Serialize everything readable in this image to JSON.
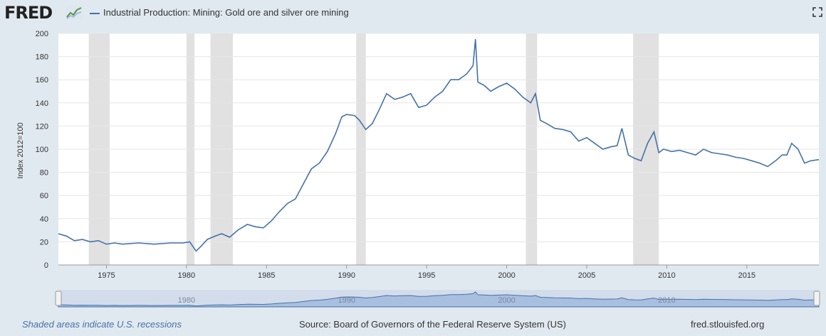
{
  "brand": {
    "name": "FRED"
  },
  "header": {
    "series_label": "Industrial Production: Mining: Gold ore and silver ore mining"
  },
  "icons": {
    "logo": "fred-chart-icon",
    "expand": "fullscreen-icon"
  },
  "colors": {
    "line": "#4572a7",
    "recession": "#e1e1e1",
    "background": "#e1e9f0",
    "grid": "#e6e6e6"
  },
  "footer": {
    "recession_note": "Shaded areas indicate U.S. recessions",
    "source": "Source: Board of Governors of the Federal Reserve System (US)",
    "site": "fred.stlouisfed.org"
  },
  "chart_data": {
    "type": "line",
    "title": "Industrial Production: Mining: Gold ore and silver ore mining",
    "ylabel": "Index 2012=100",
    "xlabel": "",
    "xlim": [
      1972.0,
      2019.5
    ],
    "ylim": [
      0,
      200
    ],
    "yticks": [
      0,
      20,
      40,
      60,
      80,
      100,
      120,
      140,
      160,
      180,
      200
    ],
    "xticks": [
      1975,
      1980,
      1985,
      1990,
      1995,
      2000,
      2005,
      2010,
      2015
    ],
    "recessions": [
      [
        1973.9,
        1975.2
      ],
      [
        1980.0,
        1980.5
      ],
      [
        1981.5,
        1982.9
      ],
      [
        1990.6,
        1991.2
      ],
      [
        2001.2,
        2001.9
      ],
      [
        2007.9,
        2009.5
      ]
    ],
    "navigator_ticks": [
      1980,
      1990,
      2000,
      2010
    ],
    "series": [
      {
        "name": "Industrial Production: Mining: Gold ore and silver ore mining",
        "x": [
          1972.0,
          1972.5,
          1973.0,
          1973.5,
          1974.0,
          1974.5,
          1975.0,
          1975.5,
          1976.0,
          1977.0,
          1978.0,
          1979.0,
          1979.8,
          1980.2,
          1980.6,
          1980.9,
          1981.3,
          1981.8,
          1982.2,
          1982.7,
          1983.2,
          1983.8,
          1984.3,
          1984.8,
          1985.3,
          1985.8,
          1986.3,
          1986.8,
          1987.3,
          1987.8,
          1988.3,
          1988.8,
          1989.3,
          1989.7,
          1990.0,
          1990.5,
          1990.8,
          1991.2,
          1991.6,
          1992.0,
          1992.5,
          1993.0,
          1993.5,
          1994.0,
          1994.5,
          1995.0,
          1995.5,
          1996.0,
          1996.5,
          1997.0,
          1997.5,
          1997.9,
          1998.05,
          1998.2,
          1998.6,
          1999.0,
          1999.5,
          2000.0,
          2000.5,
          2001.0,
          2001.5,
          2001.8,
          2002.1,
          2002.5,
          2003.0,
          2003.5,
          2004.0,
          2004.5,
          2005.0,
          2005.5,
          2006.0,
          2006.5,
          2006.9,
          2007.2,
          2007.6,
          2008.0,
          2008.4,
          2008.8,
          2009.2,
          2009.5,
          2009.8,
          2010.3,
          2010.8,
          2011.3,
          2011.8,
          2012.3,
          2012.8,
          2013.3,
          2013.8,
          2014.3,
          2014.8,
          2015.3,
          2015.8,
          2016.3,
          2016.8,
          2017.2,
          2017.5,
          2017.8,
          2018.2,
          2018.6,
          2019.0,
          2019.5
        ],
        "values": [
          27,
          25,
          21,
          22,
          20,
          21,
          18,
          19,
          18,
          19,
          18,
          19,
          19,
          20,
          12,
          16,
          22,
          25,
          27,
          24,
          30,
          35,
          33,
          32,
          38,
          46,
          53,
          57,
          70,
          83,
          88,
          98,
          113,
          128,
          130,
          129,
          125,
          117,
          122,
          133,
          148,
          143,
          145,
          148,
          136,
          138,
          145,
          150,
          160,
          160,
          165,
          172,
          195,
          158,
          155,
          150,
          154,
          157,
          152,
          145,
          140,
          148,
          125,
          122,
          118,
          117,
          115,
          107,
          110,
          105,
          100,
          102,
          103,
          118,
          95,
          92,
          90,
          105,
          115,
          97,
          100,
          98,
          99,
          97,
          95,
          100,
          97,
          96,
          95,
          93,
          92,
          90,
          88,
          85,
          90,
          95,
          95,
          105,
          100,
          88,
          90,
          91
        ]
      }
    ]
  }
}
